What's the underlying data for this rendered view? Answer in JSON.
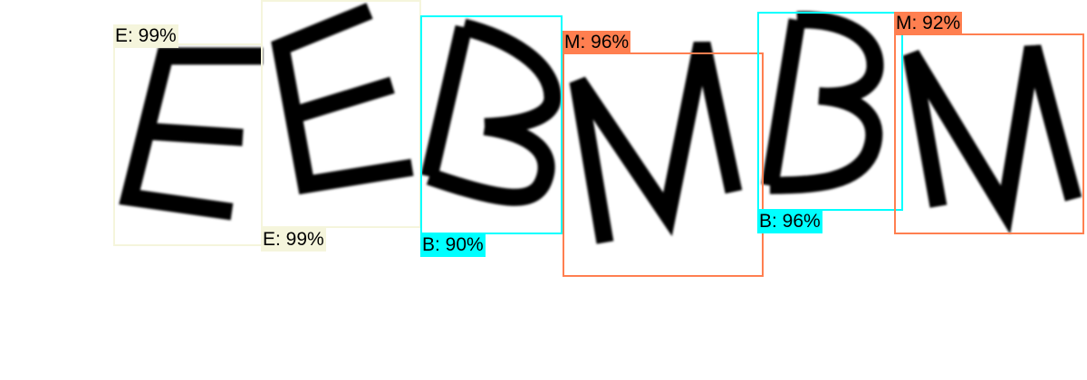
{
  "detections": [
    {
      "text": "E: 99%",
      "color": "#f5f5dc"
    },
    {
      "text": "E: 99%",
      "color": "#f5f5dc"
    },
    {
      "text": "B: 90%",
      "color": "#00ffff"
    },
    {
      "text": "M: 96%",
      "color": "#ff7f50"
    },
    {
      "text": "B: 96%",
      "color": "#00ffff"
    },
    {
      "text": "M: 92%",
      "color": "#ff7f50"
    }
  ]
}
